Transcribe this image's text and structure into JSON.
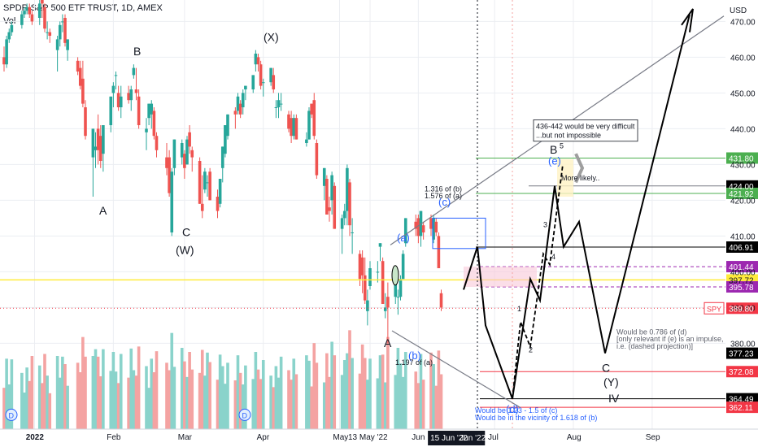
{
  "header": {
    "title": "SPDR S&P 500 ETF TRUST, 1D, AMEX",
    "volume_label": "Vol"
  },
  "colors": {
    "up": "#26a69a",
    "down": "#ef5350",
    "vol_up": "#8ad3cb",
    "vol_down": "#f4a3a2",
    "grid": "#eceef2",
    "axis_text": "#131722",
    "wave_blue": "#2962ff",
    "green_line": "#4caf50",
    "red_line": "#f23645",
    "yellow_line": "#ffeb3b"
  },
  "chart_data": {
    "type": "candlestick",
    "symbol": "SPY",
    "ylim": [
      356,
      476
    ],
    "price_axis_unit": "USD",
    "y_ticks": [
      380,
      390,
      400,
      410,
      420,
      430,
      440,
      450,
      460,
      470
    ],
    "x_ticks": [
      {
        "date": "2022-01-01",
        "label": "2022"
      },
      {
        "date": "2022-02-01",
        "label": "Feb"
      },
      {
        "date": "2022-03-01",
        "label": "Mar"
      },
      {
        "date": "2022-04-01",
        "label": "Apr"
      },
      {
        "date": "2022-05-01",
        "label": "May"
      },
      {
        "date": "2022-05-13",
        "label": "13 May '22"
      },
      {
        "date": "2022-06-01",
        "label": "Jun"
      },
      {
        "date": "2022-07-01",
        "label": "Jul"
      },
      {
        "date": "2022-08-01",
        "label": "Aug"
      },
      {
        "date": "2022-09-01",
        "label": "Sep"
      }
    ],
    "date_highlight": [
      {
        "date": "2022-06-15",
        "label": "15 Jun '22"
      },
      {
        "date": "2022-06-24",
        "label": "Jun '22"
      }
    ],
    "candles": [
      {
        "date": "2021-12-20",
        "o": 460,
        "h": 463,
        "l": 456,
        "c": 458
      },
      {
        "date": "2021-12-21",
        "o": 458,
        "h": 466,
        "l": 457,
        "c": 465
      },
      {
        "date": "2021-12-22",
        "o": 465,
        "h": 468,
        "l": 464,
        "c": 467
      },
      {
        "date": "2021-12-23",
        "o": 467,
        "h": 470,
        "l": 466,
        "c": 469
      },
      {
        "date": "2021-12-27",
        "o": 469,
        "h": 473,
        "l": 468,
        "c": 472
      },
      {
        "date": "2021-12-28",
        "o": 472,
        "h": 474,
        "l": 471,
        "c": 473
      },
      {
        "date": "2021-12-29",
        "o": 473,
        "h": 475,
        "l": 472,
        "c": 474
      },
      {
        "date": "2021-12-30",
        "o": 474,
        "h": 475,
        "l": 471,
        "c": 472
      },
      {
        "date": "2021-12-31",
        "o": 472,
        "h": 473,
        "l": 469,
        "c": 470
      },
      {
        "date": "2022-01-03",
        "o": 471,
        "h": 476,
        "l": 469,
        "c": 475
      },
      {
        "date": "2022-01-04",
        "o": 476,
        "h": 477,
        "l": 471,
        "c": 475
      },
      {
        "date": "2022-01-05",
        "o": 474,
        "h": 475,
        "l": 467,
        "c": 468
      },
      {
        "date": "2022-01-06",
        "o": 467,
        "h": 470,
        "l": 465,
        "c": 467
      },
      {
        "date": "2022-01-07",
        "o": 467,
        "h": 468,
        "l": 464,
        "c": 466
      },
      {
        "date": "2022-01-10",
        "o": 462,
        "h": 466,
        "l": 456,
        "c": 465
      },
      {
        "date": "2022-01-11",
        "o": 465,
        "h": 470,
        "l": 463,
        "c": 469
      },
      {
        "date": "2022-01-12",
        "o": 470,
        "h": 472,
        "l": 467,
        "c": 470
      },
      {
        "date": "2022-01-13",
        "o": 471,
        "h": 472,
        "l": 463,
        "c": 464
      },
      {
        "date": "2022-01-14",
        "o": 462,
        "h": 465,
        "l": 459,
        "c": 465
      },
      {
        "date": "2022-01-18",
        "o": 459,
        "h": 460,
        "l": 455,
        "c": 456
      },
      {
        "date": "2022-01-19",
        "o": 457,
        "h": 459,
        "l": 451,
        "c": 452
      },
      {
        "date": "2022-01-20",
        "o": 454,
        "h": 459,
        "l": 446,
        "c": 447
      },
      {
        "date": "2022-01-21",
        "o": 446,
        "h": 448,
        "l": 437,
        "c": 438
      },
      {
        "date": "2022-01-24",
        "o": 432,
        "h": 440,
        "l": 421,
        "c": 440
      },
      {
        "date": "2022-01-25",
        "o": 434,
        "h": 439,
        "l": 429,
        "c": 435
      },
      {
        "date": "2022-01-26",
        "o": 440,
        "h": 444,
        "l": 430,
        "c": 434
      },
      {
        "date": "2022-01-27",
        "o": 438,
        "h": 441,
        "l": 429,
        "c": 431
      },
      {
        "date": "2022-01-28",
        "o": 433,
        "h": 441,
        "l": 428,
        "c": 441
      },
      {
        "date": "2022-01-31",
        "o": 441,
        "h": 449,
        "l": 439,
        "c": 449
      },
      {
        "date": "2022-02-01",
        "o": 450,
        "h": 453,
        "l": 446,
        "c": 452
      },
      {
        "date": "2022-02-02",
        "o": 455,
        "h": 456,
        "l": 451,
        "c": 455
      },
      {
        "date": "2022-02-03",
        "o": 450,
        "h": 452,
        "l": 445,
        "c": 446
      },
      {
        "date": "2022-02-04",
        "o": 446,
        "h": 452,
        "l": 443,
        "c": 449
      },
      {
        "date": "2022-02-07",
        "o": 450,
        "h": 452,
        "l": 447,
        "c": 448
      },
      {
        "date": "2022-02-08",
        "o": 448,
        "h": 452,
        "l": 445,
        "c": 451
      },
      {
        "date": "2022-02-09",
        "o": 455,
        "h": 458,
        "l": 454,
        "c": 457
      },
      {
        "date": "2022-02-10",
        "o": 451,
        "h": 457,
        "l": 448,
        "c": 450
      },
      {
        "date": "2022-02-11",
        "o": 449,
        "h": 451,
        "l": 440,
        "c": 441
      },
      {
        "date": "2022-02-14",
        "o": 439,
        "h": 443,
        "l": 434,
        "c": 440
      },
      {
        "date": "2022-02-15",
        "o": 443,
        "h": 447,
        "l": 441,
        "c": 447
      },
      {
        "date": "2022-02-16",
        "o": 444,
        "h": 448,
        "l": 440,
        "c": 447
      },
      {
        "date": "2022-02-17",
        "o": 445,
        "h": 446,
        "l": 437,
        "c": 438
      },
      {
        "date": "2022-02-18",
        "o": 438,
        "h": 439,
        "l": 432,
        "c": 434
      },
      {
        "date": "2022-02-22",
        "o": 432,
        "h": 436,
        "l": 427,
        "c": 429
      },
      {
        "date": "2022-02-23",
        "o": 432,
        "h": 434,
        "l": 421,
        "c": 422
      },
      {
        "date": "2022-02-24",
        "o": 411,
        "h": 429,
        "l": 410,
        "c": 428
      },
      {
        "date": "2022-02-25",
        "o": 429,
        "h": 437,
        "l": 427,
        "c": 437
      },
      {
        "date": "2022-02-28",
        "o": 432,
        "h": 437,
        "l": 430,
        "c": 436
      },
      {
        "date": "2022-03-01",
        "o": 433,
        "h": 434,
        "l": 426,
        "c": 429
      },
      {
        "date": "2022-03-02",
        "o": 430,
        "h": 438,
        "l": 430,
        "c": 437
      },
      {
        "date": "2022-03-03",
        "o": 439,
        "h": 441,
        "l": 433,
        "c": 435
      },
      {
        "date": "2022-03-04",
        "o": 434,
        "h": 435,
        "l": 428,
        "c": 432
      },
      {
        "date": "2022-03-07",
        "o": 431,
        "h": 432,
        "l": 419,
        "c": 419
      },
      {
        "date": "2022-03-08",
        "o": 419,
        "h": 427,
        "l": 415,
        "c": 417
      },
      {
        "date": "2022-03-09",
        "o": 423,
        "h": 429,
        "l": 422,
        "c": 428
      },
      {
        "date": "2022-03-10",
        "o": 425,
        "h": 427,
        "l": 421,
        "c": 425
      },
      {
        "date": "2022-03-11",
        "o": 428,
        "h": 429,
        "l": 420,
        "c": 420
      },
      {
        "date": "2022-03-14",
        "o": 421,
        "h": 423,
        "l": 415,
        "c": 417
      },
      {
        "date": "2022-03-15",
        "o": 419,
        "h": 426,
        "l": 418,
        "c": 426
      },
      {
        "date": "2022-03-16",
        "o": 429,
        "h": 435,
        "l": 425,
        "c": 435
      },
      {
        "date": "2022-03-17",
        "o": 433,
        "h": 441,
        "l": 432,
        "c": 441
      },
      {
        "date": "2022-03-18",
        "o": 438,
        "h": 444,
        "l": 437,
        "c": 444
      },
      {
        "date": "2022-03-21",
        "o": 445,
        "h": 446,
        "l": 440,
        "c": 444
      },
      {
        "date": "2022-03-22",
        "o": 445,
        "h": 450,
        "l": 444,
        "c": 449
      },
      {
        "date": "2022-03-23",
        "o": 447,
        "h": 448,
        "l": 443,
        "c": 444
      },
      {
        "date": "2022-03-24",
        "o": 446,
        "h": 451,
        "l": 444,
        "c": 450
      },
      {
        "date": "2022-03-25",
        "o": 451,
        "h": 452,
        "l": 448,
        "c": 452
      },
      {
        "date": "2022-03-28",
        "o": 451,
        "h": 455,
        "l": 450,
        "c": 455
      },
      {
        "date": "2022-03-29",
        "o": 458,
        "h": 462,
        "l": 456,
        "c": 461
      },
      {
        "date": "2022-03-30",
        "o": 460,
        "h": 461,
        "l": 456,
        "c": 458
      },
      {
        "date": "2022-03-31",
        "o": 458,
        "h": 459,
        "l": 451,
        "c": 452
      },
      {
        "date": "2022-04-01",
        "o": 453,
        "h": 454,
        "l": 449,
        "c": 453
      },
      {
        "date": "2022-04-04",
        "o": 453,
        "h": 457,
        "l": 452,
        "c": 457
      },
      {
        "date": "2022-04-05",
        "o": 455,
        "h": 457,
        "l": 450,
        "c": 451
      },
      {
        "date": "2022-04-06",
        "o": 446,
        "h": 448,
        "l": 443,
        "c": 446
      },
      {
        "date": "2022-04-07",
        "o": 446,
        "h": 450,
        "l": 443,
        "c": 448
      },
      {
        "date": "2022-04-08",
        "o": 447,
        "h": 450,
        "l": 445,
        "c": 447
      },
      {
        "date": "2022-04-11",
        "o": 444,
        "h": 445,
        "l": 439,
        "c": 440
      },
      {
        "date": "2022-04-12",
        "o": 443,
        "h": 445,
        "l": 436,
        "c": 438
      },
      {
        "date": "2022-04-13",
        "o": 438,
        "h": 444,
        "l": 437,
        "c": 443
      },
      {
        "date": "2022-04-14",
        "o": 443,
        "h": 444,
        "l": 437,
        "c": 437
      },
      {
        "date": "2022-04-18",
        "o": 436,
        "h": 439,
        "l": 435,
        "c": 437
      },
      {
        "date": "2022-04-19",
        "o": 437,
        "h": 446,
        "l": 437,
        "c": 445
      },
      {
        "date": "2022-04-20",
        "o": 447,
        "h": 447,
        "l": 443,
        "c": 444
      },
      {
        "date": "2022-04-21",
        "o": 448,
        "h": 450,
        "l": 437,
        "c": 438
      },
      {
        "date": "2022-04-22",
        "o": 436,
        "h": 437,
        "l": 426,
        "c": 427
      },
      {
        "date": "2022-04-25",
        "o": 424,
        "h": 429,
        "l": 420,
        "c": 429
      },
      {
        "date": "2022-04-26",
        "o": 426,
        "h": 427,
        "l": 416,
        "c": 416
      },
      {
        "date": "2022-04-27",
        "o": 418,
        "h": 421,
        "l": 414,
        "c": 417
      },
      {
        "date": "2022-04-28",
        "o": 420,
        "h": 428,
        "l": 416,
        "c": 427
      },
      {
        "date": "2022-04-29",
        "o": 424,
        "h": 425,
        "l": 412,
        "c": 412
      },
      {
        "date": "2022-05-02",
        "o": 412,
        "h": 416,
        "l": 405,
        "c": 415
      },
      {
        "date": "2022-05-03",
        "o": 415,
        "h": 419,
        "l": 413,
        "c": 417
      },
      {
        "date": "2022-05-04",
        "o": 417,
        "h": 430,
        "l": 413,
        "c": 429
      },
      {
        "date": "2022-05-05",
        "o": 425,
        "h": 426,
        "l": 410,
        "c": 413
      },
      {
        "date": "2022-05-06",
        "o": 411,
        "h": 415,
        "l": 405,
        "c": 411
      },
      {
        "date": "2022-05-09",
        "o": 405,
        "h": 406,
        "l": 396,
        "c": 398
      },
      {
        "date": "2022-05-10",
        "o": 404,
        "h": 406,
        "l": 394,
        "c": 399
      },
      {
        "date": "2022-05-11",
        "o": 399,
        "h": 404,
        "l": 391,
        "c": 392
      },
      {
        "date": "2022-05-12",
        "o": 389,
        "h": 395,
        "l": 385,
        "c": 392
      },
      {
        "date": "2022-05-13",
        "o": 396,
        "h": 403,
        "l": 395,
        "c": 401
      },
      {
        "date": "2022-05-16",
        "o": 400,
        "h": 403,
        "l": 397,
        "c": 400
      },
      {
        "date": "2022-05-17",
        "o": 407,
        "h": 408,
        "l": 403,
        "c": 408
      },
      {
        "date": "2022-05-18",
        "o": 403,
        "h": 404,
        "l": 391,
        "c": 391
      },
      {
        "date": "2022-05-19",
        "o": 389,
        "h": 394,
        "l": 387,
        "c": 390
      },
      {
        "date": "2022-05-20",
        "o": 393,
        "h": 397,
        "l": 380,
        "c": 390
      },
      {
        "date": "2022-05-23",
        "o": 393,
        "h": 397,
        "l": 391,
        "c": 397
      },
      {
        "date": "2022-05-24",
        "o": 393,
        "h": 395,
        "l": 388,
        "c": 393
      },
      {
        "date": "2022-05-25",
        "o": 393,
        "h": 399,
        "l": 392,
        "c": 398
      },
      {
        "date": "2022-05-26",
        "o": 398,
        "h": 406,
        "l": 398,
        "c": 405
      },
      {
        "date": "2022-05-27",
        "o": 408,
        "h": 415,
        "l": 407,
        "c": 415
      },
      {
        "date": "2022-05-31",
        "o": 414,
        "h": 416,
        "l": 410,
        "c": 412
      },
      {
        "date": "2022-06-01",
        "o": 415,
        "h": 416,
        "l": 408,
        "c": 410
      },
      {
        "date": "2022-06-02",
        "o": 410,
        "h": 417,
        "l": 407,
        "c": 417
      },
      {
        "date": "2022-06-03",
        "o": 413,
        "h": 414,
        "l": 409,
        "c": 411
      },
      {
        "date": "2022-06-06",
        "o": 415,
        "h": 416,
        "l": 410,
        "c": 412
      },
      {
        "date": "2022-06-07",
        "o": 409,
        "h": 416,
        "l": 408,
        "c": 415
      },
      {
        "date": "2022-06-08",
        "o": 414,
        "h": 415,
        "l": 410,
        "c": 411
      },
      {
        "date": "2022-06-09",
        "o": 410,
        "h": 411,
        "l": 401,
        "c": 401
      },
      {
        "date": "2022-06-10",
        "o": 394,
        "h": 395,
        "l": 389,
        "c": 390
      }
    ],
    "volume_ylim": [
      0,
      180
    ]
  },
  "price_tags": [
    {
      "value": 431.8,
      "label": "431.80",
      "bg": "#4caf50",
      "fg": "#ffffff"
    },
    {
      "value": 424.0,
      "label": "424.00",
      "bg": "#000000",
      "fg": "#ffffff"
    },
    {
      "value": 421.92,
      "label": "421.92",
      "bg": "#4caf50",
      "fg": "#ffffff"
    },
    {
      "value": 406.91,
      "label": "406.91",
      "bg": "#000000",
      "fg": "#ffffff"
    },
    {
      "value": 401.44,
      "label": "401.44",
      "bg": "#9c27b0",
      "fg": "#ffffff"
    },
    {
      "value": 397.72,
      "label": "397.72",
      "bg": "#ffeb3b",
      "fg": "#131722"
    },
    {
      "value": 395.78,
      "label": "395.78",
      "bg": "#9c27b0",
      "fg": "#ffffff"
    },
    {
      "value": 389.8,
      "label": "389.80",
      "bg": "#f23645",
      "fg": "#ffffff"
    },
    {
      "value": 377.23,
      "label": "377.23",
      "bg": "#000000",
      "fg": "#ffffff"
    },
    {
      "value": 372.08,
      "label": "372.08",
      "bg": "#f23645",
      "fg": "#ffffff"
    },
    {
      "value": 364.49,
      "label": "364.49",
      "bg": "#000000",
      "fg": "#ffffff"
    },
    {
      "value": 362.11,
      "label": "362.11",
      "bg": "#f23645",
      "fg": "#ffffff"
    }
  ],
  "symbol_tag": {
    "label": "SPY",
    "value": 389.8
  },
  "wave_labels": {
    "A_left": "A",
    "B_top": "B",
    "C_mar": "C",
    "W": "(W)",
    "X": "(X)",
    "A_may": "A",
    "a": "(a)",
    "b": "(b)",
    "c": "(c)",
    "d": "(d)",
    "e": "(e)",
    "B_proj": "B",
    "five": "5",
    "three": "3",
    "four": "4",
    "one": "1",
    "two": "2",
    "C_proj": "C",
    "Y": "(Y)",
    "IV": "IV"
  },
  "annotations": {
    "fib_b_1": "1.316 of (b)",
    "fib_b_2": "1.576 of (a)",
    "fib_b_low": "1.197 of (a)",
    "difficult_1": "436-442 would be very difficult",
    "difficult_2": "...but not impossible",
    "more_likely": "More likely..",
    "ratio_1": "Would be 0.786 of (d)",
    "ratio_2": "[only relevant if (e) is an impulse,",
    "ratio_3": "i.e. (dashed projection)]",
    "vicinity_1": "Would be 1.23 - 1.5 of (c)",
    "vicinity_2": "Would be in the vicinity of 1.618 of (b)"
  },
  "dividend_marker": "D"
}
